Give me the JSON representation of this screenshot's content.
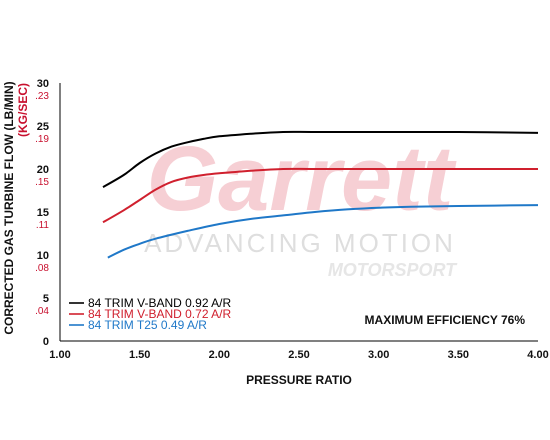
{
  "chart_data": {
    "type": "line",
    "xlabel": "PRESSURE RATIO",
    "ylabel": "CORRECTED GAS TURBINE FLOW (LB/MIN)",
    "ylabel_secondary": "(KG/SEC)",
    "xlim": [
      1.0,
      4.0
    ],
    "ylim": [
      0,
      30
    ],
    "x_ticks": [
      "1.00",
      "1.50",
      "2.00",
      "2.50",
      "3.00",
      "3.50",
      "4.00"
    ],
    "y_ticks": [
      "0",
      "5",
      "10",
      "15",
      "20",
      "25",
      "30"
    ],
    "y_ticks_secondary": [
      ".04",
      ".08",
      ".11",
      ".15",
      ".19",
      ".23"
    ],
    "grid": false,
    "legend_position": "bottom-left",
    "annotation": "MAXIMUM EFFICIENCY 76%",
    "watermark": {
      "brand": "Garrett",
      "tagline": "ADVANCING MOTION",
      "sub": "MOTORSPORT"
    },
    "series": [
      {
        "name": "84 TRIM V-BAND 0.92 A/R",
        "color": "#000000",
        "x": [
          1.27,
          1.4,
          1.5,
          1.6,
          1.7,
          1.8,
          1.9,
          2.0,
          2.2,
          2.4,
          2.6,
          3.0,
          3.5,
          4.0
        ],
        "y": [
          17.9,
          19.3,
          20.7,
          21.8,
          22.6,
          23.1,
          23.5,
          23.8,
          24.1,
          24.3,
          24.3,
          24.3,
          24.3,
          24.2
        ]
      },
      {
        "name": "84 TRIM V-BAND 0.72 A/R",
        "color": "#d0202e",
        "x": [
          1.27,
          1.4,
          1.5,
          1.6,
          1.7,
          1.8,
          1.9,
          2.0,
          2.2,
          2.4,
          2.6,
          3.0,
          3.5,
          4.0
        ],
        "y": [
          13.8,
          15.2,
          16.4,
          17.6,
          18.5,
          19.0,
          19.3,
          19.5,
          19.8,
          20.0,
          20.0,
          20.0,
          20.0,
          20.0
        ]
      },
      {
        "name": "84 TRIM T25 0.49 A/R",
        "color": "#1f78c8",
        "x": [
          1.3,
          1.4,
          1.5,
          1.6,
          1.8,
          2.0,
          2.2,
          2.4,
          2.6,
          2.8,
          3.0,
          3.2,
          3.5,
          4.0
        ],
        "y": [
          9.7,
          10.6,
          11.3,
          11.9,
          12.8,
          13.6,
          14.2,
          14.6,
          15.0,
          15.3,
          15.5,
          15.6,
          15.7,
          15.8
        ]
      }
    ]
  }
}
